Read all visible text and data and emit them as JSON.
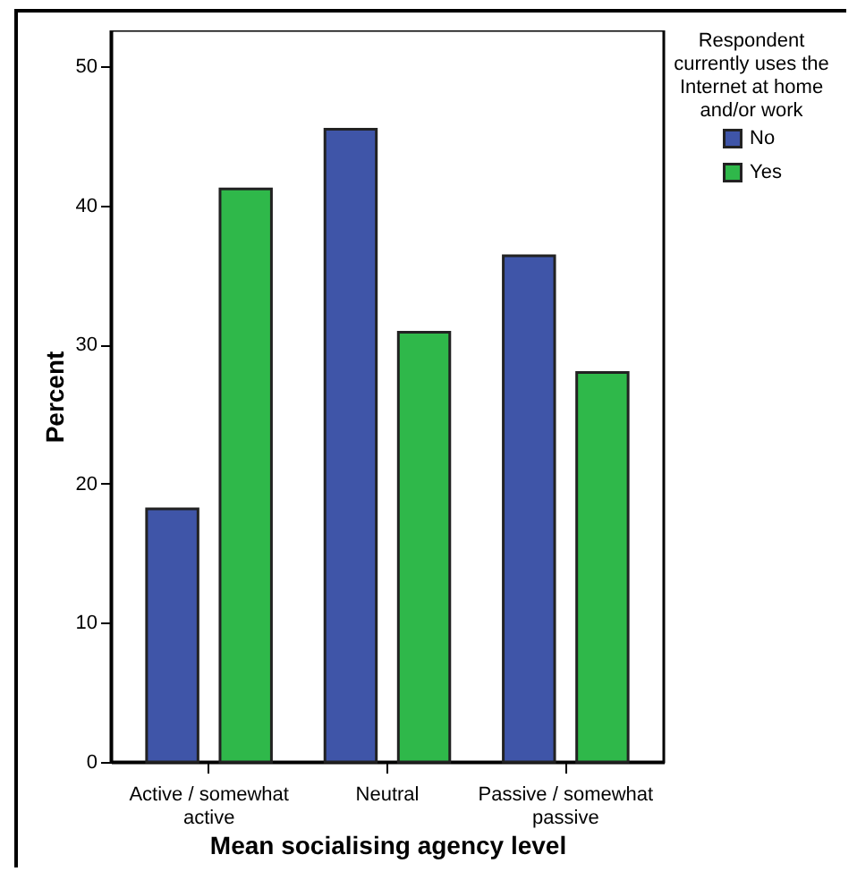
{
  "chart_data": {
    "type": "bar",
    "xlabel": "Mean socialising agency level",
    "ylabel": "Percent",
    "legend_title": "Respondent currently uses the Internet at home and/or work",
    "categories": [
      "Active / somewhat active",
      "Neutral",
      "Passive / somewhat passive"
    ],
    "series": [
      {
        "name": "No",
        "color": "#3f55a8",
        "values": [
          18.2,
          45.5,
          36.4
        ]
      },
      {
        "name": "Yes",
        "color": "#2fb84a",
        "values": [
          41.2,
          30.9,
          28.0
        ]
      }
    ],
    "ylim": [
      0,
      52.6
    ],
    "yticks": [
      0,
      10,
      20,
      30,
      40,
      50
    ],
    "grid": false,
    "legend": "top right"
  }
}
